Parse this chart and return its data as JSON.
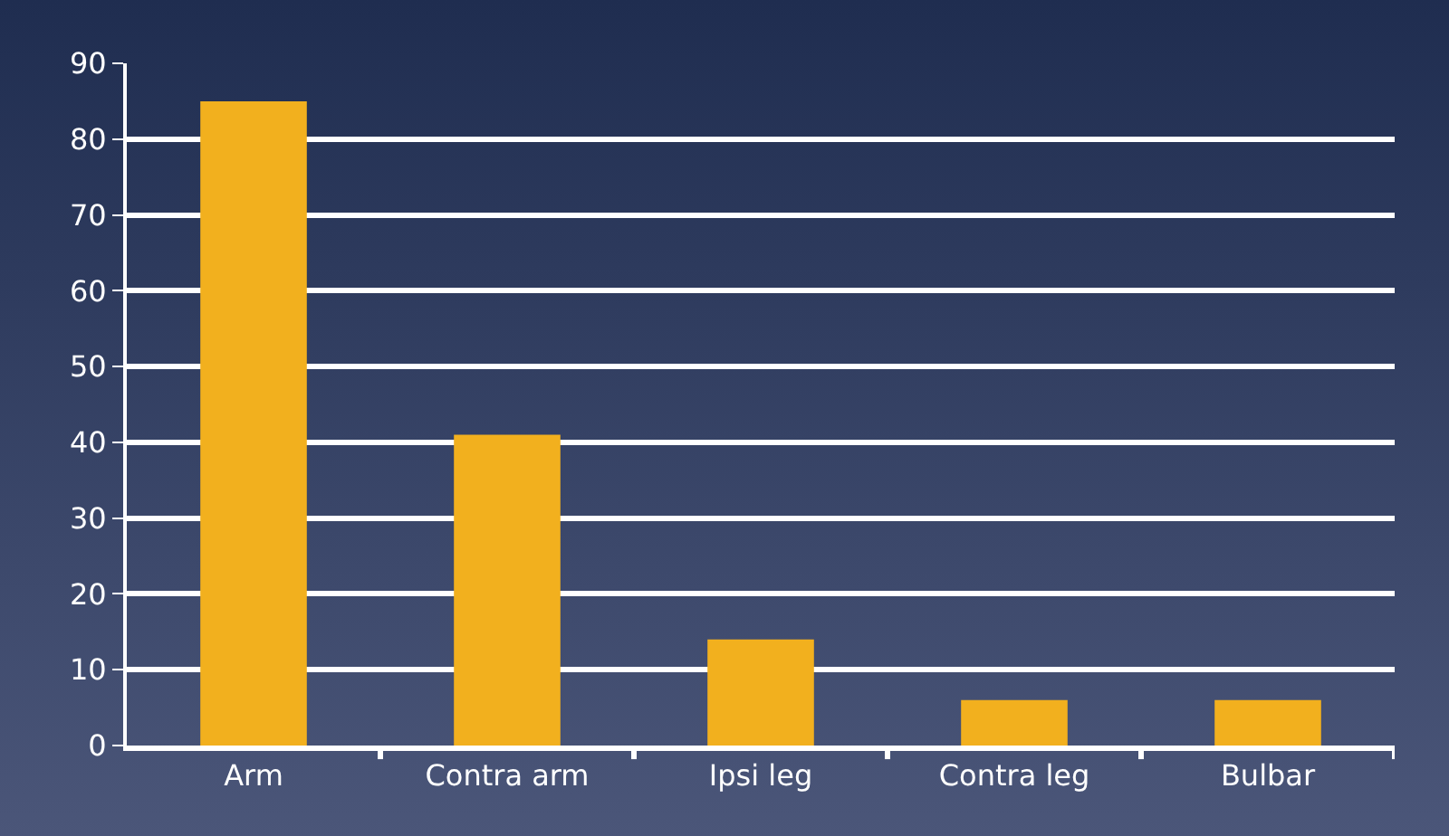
{
  "chart_data": {
    "type": "bar",
    "categories": [
      "Arm",
      "Contra arm",
      "Ipsi leg",
      "Contra leg",
      "Bulbar"
    ],
    "values": [
      85,
      41,
      14,
      6,
      6
    ],
    "color": "#f2b01e",
    "ylim": [
      0,
      90
    ],
    "yticks": [
      0,
      10,
      20,
      30,
      40,
      50,
      60,
      70,
      80,
      90
    ],
    "grid": "y"
  }
}
